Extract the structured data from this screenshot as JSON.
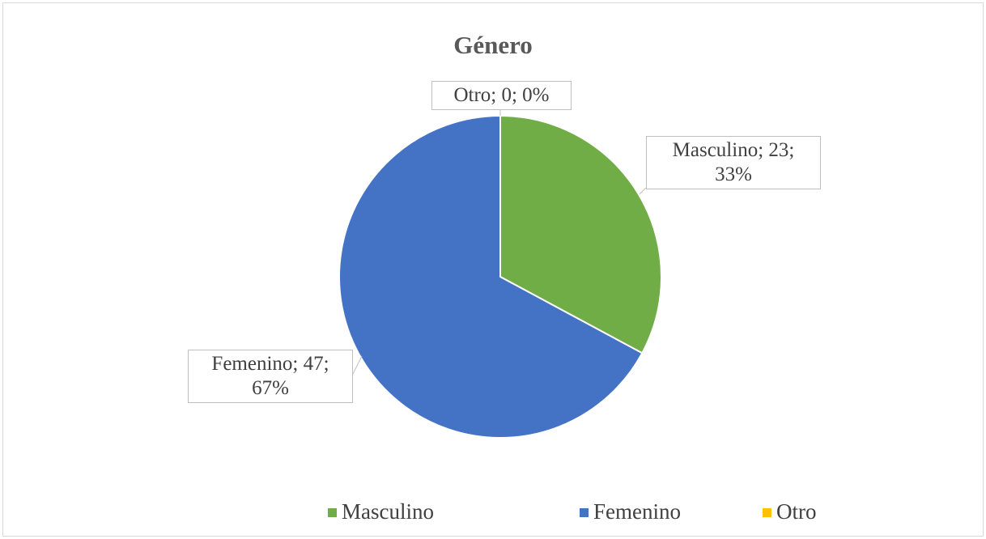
{
  "chart_data": {
    "type": "pie",
    "title": "Género",
    "categories": [
      "Masculino",
      "Femenino",
      "Otro"
    ],
    "values": [
      23,
      47,
      0
    ],
    "value_labels": [
      "Masculino; 23; 33%",
      "Femenino; 47; 67%",
      "Otro; 0; 0%"
    ],
    "colors": [
      "#70ad47",
      "#4472c4",
      "#ffc000"
    ],
    "legend": "bottom"
  }
}
